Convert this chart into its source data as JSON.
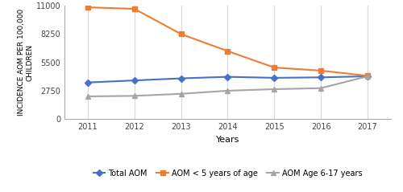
{
  "years": [
    2011,
    2012,
    2013,
    2014,
    2015,
    2016,
    2017
  ],
  "total_aom": [
    3550,
    3750,
    3950,
    4100,
    4000,
    4050,
    4150
  ],
  "aom_under5": [
    10850,
    10700,
    8250,
    6600,
    5000,
    4700,
    4200
  ],
  "aom_6to17": [
    2200,
    2250,
    2450,
    2750,
    2900,
    3000,
    4150
  ],
  "total_aom_color": "#4472c4",
  "aom_under5_color": "#ed7d31",
  "aom_6to17_color": "#a5a5a5",
  "ylabel": "INCIDENCE AOM PER 100,000\nCHILDREN",
  "xlabel": "Years",
  "ylim": [
    0,
    11000
  ],
  "yticks": [
    0,
    2750,
    5500,
    8250,
    11000
  ],
  "ytick_labels": [
    "0",
    "2750",
    "5500",
    "8250",
    "11000"
  ],
  "legend_labels": [
    "Total AOM",
    "AOM < 5 years of age",
    "AOM Age 6-17 years"
  ],
  "grid_color": "#d9d9d9",
  "bg_color": "#ffffff"
}
